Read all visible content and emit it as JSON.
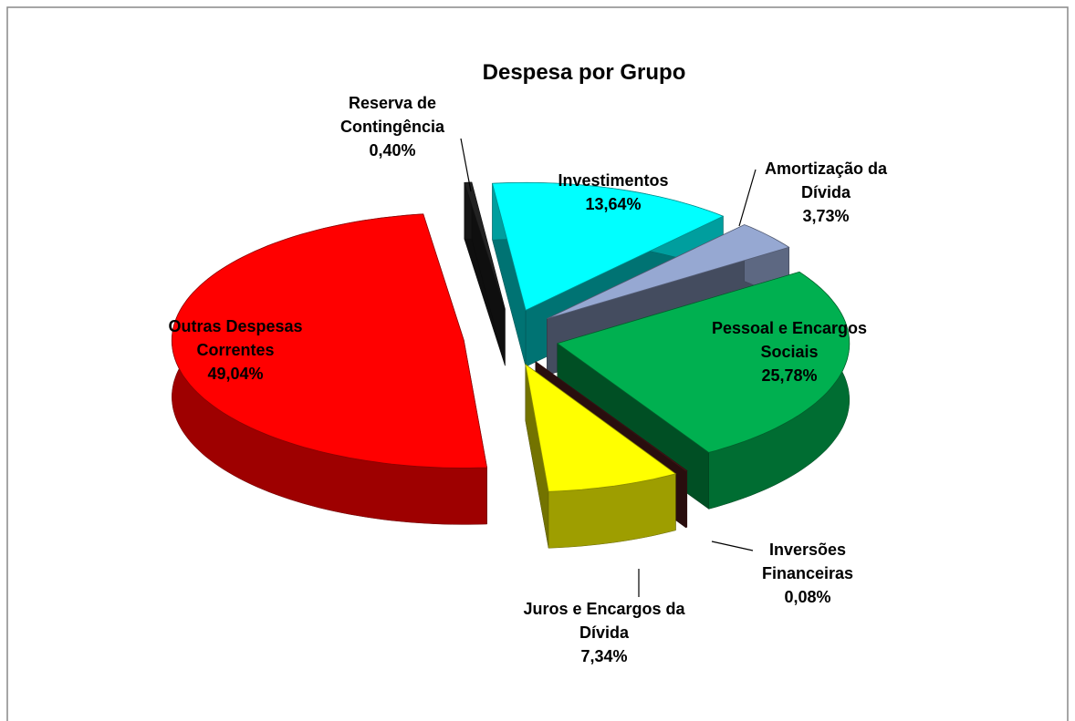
{
  "chart_data": {
    "type": "pie3d",
    "title": "Despesa por Grupo",
    "categories": [
      "Reserva de Contingência",
      "Investimentos",
      "Amortização da Dívida",
      "Pessoal e Encargos Sociais",
      "Inversões Financeiras",
      "Juros e Encargos da Dívida",
      "Outras Despesas Correntes"
    ],
    "values": [
      0.4,
      13.64,
      3.73,
      25.78,
      0.08,
      7.34,
      49.04
    ],
    "value_labels": [
      "0,40%",
      "13,64%",
      "3,73%",
      "25,78%",
      "0,08%",
      "7,34%",
      "49,04%"
    ],
    "colors": [
      "#222222",
      "#00ffff",
      "#96a8d2",
      "#00b050",
      "#5a1e1e",
      "#ffff00",
      "#ff0000"
    ]
  }
}
